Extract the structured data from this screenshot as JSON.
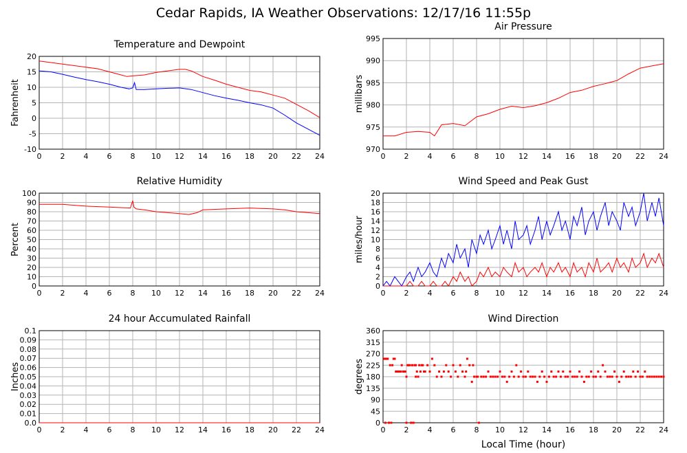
{
  "page": {
    "title": "Cedar Rapids, IA Weather Observations: 12/17/16 11:55p"
  },
  "chart_data": [
    {
      "id": "temp",
      "type": "line",
      "title": "Temperature and Dewpoint",
      "ylabel": "Fahrenheit",
      "xlabel": "",
      "xlim": [
        0,
        24
      ],
      "ylim": [
        -10,
        20
      ],
      "xticks": [
        0,
        2,
        4,
        6,
        8,
        10,
        12,
        14,
        16,
        18,
        20,
        22,
        24
      ],
      "yticks": [
        -10,
        -5,
        0,
        5,
        10,
        15,
        20
      ],
      "grid": true,
      "series": [
        {
          "color": "#ff0000",
          "x": [
            0,
            1,
            2,
            3,
            4,
            5,
            6,
            7,
            7.5,
            8,
            9,
            10,
            11,
            12,
            12.5,
            13,
            14,
            15,
            16,
            17,
            18,
            19,
            20,
            21,
            22,
            23,
            24
          ],
          "y": [
            18.5,
            18,
            17.5,
            17,
            16.5,
            16,
            15,
            14,
            13.5,
            13.7,
            14,
            14.8,
            15.3,
            15.8,
            15.8,
            15.3,
            13.5,
            12.3,
            11,
            10,
            9,
            8.5,
            7.5,
            6.5,
            4.5,
            2.5,
            0.2
          ]
        },
        {
          "color": "#0000ff",
          "x": [
            0,
            1,
            2,
            3,
            4,
            5,
            6,
            7,
            7.7,
            8,
            8.15,
            8.3,
            9,
            10,
            11,
            12,
            13,
            14,
            15,
            16,
            17,
            18,
            19,
            20,
            21,
            22,
            23,
            24
          ],
          "y": [
            15.3,
            15,
            14.2,
            13.3,
            12.5,
            11.8,
            11,
            10,
            9.5,
            9.8,
            11.5,
            9.3,
            9.3,
            9.5,
            9.7,
            9.8,
            9.3,
            8.3,
            7.3,
            6.5,
            5.8,
            5,
            4.3,
            3.3,
            1,
            -1.5,
            -3.5,
            -5.5
          ]
        }
      ]
    },
    {
      "id": "pressure",
      "type": "line",
      "title": "Air Pressure",
      "ylabel": "millibars",
      "xlabel": "",
      "xlim": [
        0,
        24
      ],
      "ylim": [
        970,
        995
      ],
      "xticks": [
        0,
        2,
        4,
        6,
        8,
        10,
        12,
        14,
        16,
        18,
        20,
        22,
        24
      ],
      "yticks": [
        970,
        975,
        980,
        985,
        990,
        995
      ],
      "grid": true,
      "series": [
        {
          "color": "#ff0000",
          "x": [
            0,
            1,
            2,
            3,
            4,
            4.4,
            5,
            6,
            7,
            8,
            9,
            10,
            11,
            12,
            13,
            14,
            15,
            16,
            17,
            18,
            19,
            20,
            21,
            22,
            23,
            24
          ],
          "y": [
            973,
            973,
            973.8,
            974,
            973.8,
            973,
            975.5,
            975.8,
            975.3,
            977.3,
            978,
            979,
            979.7,
            979.4,
            979.8,
            980.5,
            981.5,
            982.8,
            983.3,
            984.2,
            984.8,
            985.5,
            987,
            988.3,
            988.8,
            989.3
          ]
        }
      ]
    },
    {
      "id": "humidity",
      "type": "line",
      "title": "Relative Humidity",
      "ylabel": "Percent",
      "xlabel": "",
      "xlim": [
        0,
        24
      ],
      "ylim": [
        0,
        100
      ],
      "xticks": [
        0,
        2,
        4,
        6,
        8,
        10,
        12,
        14,
        16,
        18,
        20,
        22,
        24
      ],
      "yticks": [
        0,
        10,
        20,
        30,
        40,
        50,
        60,
        70,
        80,
        90,
        100
      ],
      "grid": true,
      "series": [
        {
          "color": "#ff0000",
          "x": [
            0,
            2,
            3,
            4,
            6,
            7.8,
            8,
            8.1,
            8.3,
            9,
            10,
            11,
            12,
            12.8,
            13.5,
            14,
            16,
            18,
            20,
            21,
            22,
            23,
            24
          ],
          "y": [
            88,
            88,
            87,
            86,
            85,
            84,
            92,
            85,
            83,
            82,
            80,
            79,
            78,
            77,
            79,
            82,
            83,
            84,
            83,
            82,
            80,
            79,
            78
          ]
        }
      ]
    },
    {
      "id": "wind",
      "type": "line",
      "title": "Wind Speed and Peak Gust",
      "ylabel": "miles/hour",
      "xlabel": "",
      "xlim": [
        0,
        24
      ],
      "ylim": [
        0,
        20
      ],
      "xticks": [
        0,
        2,
        4,
        6,
        8,
        10,
        12,
        14,
        16,
        18,
        20,
        22,
        24
      ],
      "yticks": [
        0,
        2,
        4,
        6,
        8,
        10,
        12,
        14,
        16,
        18,
        20
      ],
      "grid": true,
      "series": [
        {
          "color": "#0000ff",
          "x": [
            0,
            0.3,
            0.6,
            1,
            1.3,
            1.6,
            2,
            2.3,
            2.6,
            3,
            3.3,
            3.6,
            4,
            4.3,
            4.6,
            5,
            5.3,
            5.6,
            6,
            6.3,
            6.6,
            7,
            7.3,
            7.6,
            8,
            8.3,
            8.6,
            9,
            9.3,
            9.6,
            10,
            10.3,
            10.6,
            11,
            11.3,
            11.6,
            12,
            12.3,
            12.6,
            13,
            13.3,
            13.6,
            14,
            14.3,
            14.6,
            15,
            15.3,
            15.6,
            16,
            16.3,
            16.6,
            17,
            17.3,
            17.6,
            18,
            18.3,
            18.6,
            19,
            19.3,
            19.6,
            20,
            20.3,
            20.6,
            21,
            21.3,
            21.6,
            22,
            22.3,
            22.6,
            23,
            23.3,
            23.6,
            24
          ],
          "y": [
            0,
            1,
            0,
            2,
            1,
            0,
            2,
            3,
            1,
            4,
            2,
            3,
            5,
            3,
            2,
            6,
            4,
            7,
            5,
            9,
            6,
            8,
            4,
            10,
            7,
            11,
            9,
            12,
            8,
            10,
            13,
            9,
            12,
            8,
            14,
            10,
            11,
            13,
            9,
            12,
            15,
            10,
            14,
            11,
            13,
            16,
            12,
            14,
            10,
            15,
            13,
            17,
            11,
            14,
            16,
            12,
            15,
            18,
            13,
            16,
            14,
            12,
            18,
            15,
            17,
            13,
            16,
            20,
            14,
            18,
            15,
            19,
            13
          ]
        },
        {
          "color": "#ff0000",
          "x": [
            0,
            0.3,
            0.6,
            1,
            1.3,
            1.6,
            2,
            2.3,
            2.6,
            3,
            3.3,
            3.6,
            4,
            4.3,
            4.6,
            5,
            5.3,
            5.6,
            6,
            6.3,
            6.6,
            7,
            7.3,
            7.6,
            8,
            8.3,
            8.6,
            9,
            9.3,
            9.6,
            10,
            10.3,
            10.6,
            11,
            11.3,
            11.6,
            12,
            12.3,
            12.6,
            13,
            13.3,
            13.6,
            14,
            14.3,
            14.6,
            15,
            15.3,
            15.6,
            16,
            16.3,
            16.6,
            17,
            17.3,
            17.6,
            18,
            18.3,
            18.6,
            19,
            19.3,
            19.6,
            20,
            20.3,
            20.6,
            21,
            21.3,
            21.6,
            22,
            22.3,
            22.6,
            23,
            23.3,
            23.6,
            24
          ],
          "y": [
            0,
            0,
            0,
            0,
            0,
            0,
            0,
            1,
            0,
            0,
            1,
            0,
            0,
            1,
            0,
            0,
            1,
            0,
            2,
            1,
            3,
            1,
            2,
            0,
            1,
            3,
            2,
            4,
            2,
            3,
            2,
            4,
            3,
            2,
            5,
            3,
            4,
            2,
            3,
            4,
            3,
            5,
            2,
            4,
            3,
            5,
            3,
            4,
            2,
            5,
            3,
            4,
            2,
            5,
            3,
            6,
            3,
            4,
            5,
            3,
            6,
            4,
            5,
            3,
            6,
            4,
            5,
            7,
            4,
            6,
            5,
            7,
            4
          ]
        }
      ]
    },
    {
      "id": "rain",
      "type": "line",
      "title": "24 hour Accumulated Rainfall",
      "ylabel": "Inches",
      "xlabel": "",
      "xlim": [
        0,
        24
      ],
      "ylim": [
        0,
        0.1
      ],
      "xticks": [
        0,
        2,
        4,
        6,
        8,
        10,
        12,
        14,
        16,
        18,
        20,
        22,
        24
      ],
      "yticks": [
        "0.0",
        "0.01",
        "0.02",
        "0.03",
        "0.04",
        "0.05",
        "0.06",
        "0.07",
        "0.08",
        "0.09",
        "0.1"
      ],
      "grid": true,
      "series": [
        {
          "color": "#ff0000",
          "x": [
            0,
            24
          ],
          "y": [
            0,
            0
          ]
        }
      ]
    },
    {
      "id": "direction",
      "type": "scatter",
      "title": "Wind Direction",
      "ylabel": "degrees",
      "xlabel": "Local Time (hour)",
      "xlim": [
        0,
        24
      ],
      "ylim": [
        0,
        360
      ],
      "xticks": [
        0,
        2,
        4,
        6,
        8,
        10,
        12,
        14,
        16,
        18,
        20,
        22,
        24
      ],
      "yticks": [
        0,
        45,
        90,
        135,
        180,
        225,
        270,
        315,
        360
      ],
      "grid": true,
      "series": [
        {
          "color": "#ff0000",
          "x": [
            0.1,
            0.2,
            0.3,
            0.4,
            0.5,
            0.6,
            0.2,
            0.8,
            0.9,
            1.0,
            1.1,
            1.2,
            0.7,
            1.3,
            1.4,
            1.5,
            1.6,
            1.7,
            1.8,
            1.9,
            2.0,
            2.1,
            2.2,
            2.3,
            2.4,
            2.5,
            2.6,
            2.7,
            2.8,
            2.9,
            3.0,
            3.1,
            3.2,
            3.3,
            3.4,
            3.5,
            2.0,
            2.4,
            2.6,
            2.8,
            3.6,
            3.8,
            4.0,
            4.2,
            4.4,
            4.6,
            4.8,
            5.0,
            5.2,
            5.4,
            5.6,
            5.8,
            6.0,
            6.2,
            6.4,
            6.6,
            6.8,
            7.0,
            7.2,
            7.4,
            7.6,
            7.8,
            8.0,
            8.2,
            7.1,
            7.7,
            8.1
          ],
          "y": [
            250,
            250,
            250,
            250,
            0,
            225,
            0,
            225,
            250,
            250,
            200,
            200,
            0,
            200,
            200,
            200,
            225,
            200,
            200,
            200,
            180,
            225,
            225,
            225,
            0,
            225,
            0,
            225,
            180,
            200,
            180,
            225,
            200,
            225,
            225,
            200,
            0,
            0,
            0,
            225,
            200,
            225,
            200,
            250,
            225,
            180,
            200,
            180,
            200,
            225,
            200,
            180,
            225,
            200,
            180,
            225,
            200,
            180,
            250,
            225,
            160,
            180,
            180,
            0,
            200,
            225,
            180
          ]
        },
        {
          "color": "#ff0000",
          "x": [
            8.4,
            8.6,
            8.8,
            9.0,
            9.2,
            9.4,
            9.6,
            9.8,
            10.0,
            10.2,
            10.4,
            10.6,
            10.8,
            11.0,
            11.2,
            11.4,
            11.6,
            11.8,
            12.0,
            12.2,
            12.4,
            12.6,
            12.8,
            13.0,
            13.2,
            13.4,
            13.6,
            13.8,
            14.0,
            14.2,
            14.4,
            14.6,
            14.8,
            15.0,
            15.2,
            15.4,
            15.6,
            15.8,
            16.0,
            16.2,
            16.4,
            16.6,
            16.8,
            17.0,
            17.2,
            17.4,
            17.6,
            17.8,
            18.0,
            18.2,
            18.4,
            18.6,
            18.8,
            19.0,
            19.2,
            19.4,
            19.6,
            19.8,
            20.0,
            20.2,
            20.4,
            20.6,
            20.8,
            21.0,
            21.2,
            21.4,
            21.6,
            21.8,
            22.0,
            22.2,
            22.4,
            22.6,
            22.8,
            23.0,
            23.2,
            23.4,
            23.6,
            23.8,
            24.0
          ],
          "y": [
            180,
            180,
            180,
            200,
            180,
            180,
            180,
            180,
            200,
            180,
            180,
            160,
            180,
            200,
            180,
            225,
            180,
            200,
            180,
            180,
            200,
            180,
            180,
            180,
            160,
            180,
            200,
            180,
            160,
            180,
            200,
            180,
            180,
            200,
            180,
            200,
            180,
            180,
            200,
            180,
            180,
            180,
            200,
            180,
            160,
            180,
            180,
            200,
            180,
            180,
            200,
            180,
            225,
            200,
            180,
            180,
            180,
            200,
            180,
            160,
            180,
            200,
            180,
            180,
            180,
            200,
            180,
            200,
            180,
            180,
            200,
            180,
            180,
            180,
            180,
            180,
            180,
            180,
            180
          ]
        }
      ]
    }
  ]
}
